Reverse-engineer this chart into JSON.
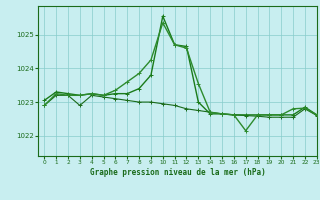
{
  "title": "Graphe pression niveau de la mer (hPa)",
  "background_color": "#c8eef0",
  "plot_bg_color": "#c8eef0",
  "grid_color": "#88cccc",
  "border_color": "#1a6b1a",
  "xlim": [
    -0.5,
    23
  ],
  "ylim": [
    1021.4,
    1025.85
  ],
  "yticks": [
    1022,
    1023,
    1024,
    1025
  ],
  "xticks": [
    0,
    1,
    2,
    3,
    4,
    5,
    6,
    7,
    8,
    9,
    10,
    11,
    12,
    13,
    14,
    15,
    16,
    17,
    18,
    19,
    20,
    21,
    22,
    23
  ],
  "series1": {
    "x": [
      0,
      1,
      2,
      3,
      4,
      5,
      6,
      7,
      8,
      9,
      10,
      11,
      12,
      13,
      14,
      15,
      16,
      17,
      18,
      19,
      20,
      21,
      22,
      23
    ],
    "y": [
      1022.9,
      1023.2,
      1023.2,
      1022.9,
      1023.2,
      1023.15,
      1023.1,
      1023.05,
      1023.0,
      1023.0,
      1022.95,
      1022.9,
      1022.8,
      1022.75,
      1022.7,
      1022.65,
      1022.62,
      1022.6,
      1022.58,
      1022.55,
      1022.55,
      1022.55,
      1022.8,
      1022.6
    ],
    "color": "#1a6b1a",
    "linewidth": 0.8,
    "marker": "+"
  },
  "series2": {
    "x": [
      0,
      1,
      2,
      3,
      4,
      5,
      6,
      7,
      8,
      9,
      10,
      11,
      12,
      13,
      14,
      15,
      16,
      17,
      18,
      19,
      20,
      21,
      22,
      23
    ],
    "y": [
      1023.05,
      1023.3,
      1023.25,
      1023.2,
      1023.25,
      1023.2,
      1023.25,
      1023.25,
      1023.4,
      1023.8,
      1025.55,
      1024.7,
      1024.65,
      1023.0,
      1022.65,
      1022.65,
      1022.62,
      1022.62,
      1022.62,
      1022.62,
      1022.62,
      1022.62,
      1022.85,
      1022.62
    ],
    "color": "#1a7b1a",
    "linewidth": 1.0,
    "marker": "+"
  },
  "series3": {
    "x": [
      0,
      1,
      2,
      3,
      4,
      5,
      6,
      7,
      8,
      9,
      10,
      11,
      12,
      13,
      14,
      15,
      16,
      17,
      18,
      19,
      20,
      21,
      22,
      23
    ],
    "y": [
      1022.9,
      1023.25,
      1023.2,
      1023.2,
      1023.25,
      1023.2,
      1023.35,
      1023.6,
      1023.85,
      1024.25,
      1025.35,
      1024.7,
      1024.6,
      1023.55,
      1022.7,
      1022.65,
      1022.62,
      1022.15,
      1022.62,
      1022.62,
      1022.62,
      1022.8,
      1022.82,
      1022.62
    ],
    "color": "#2d8b2d",
    "linewidth": 1.0,
    "marker": "+"
  }
}
